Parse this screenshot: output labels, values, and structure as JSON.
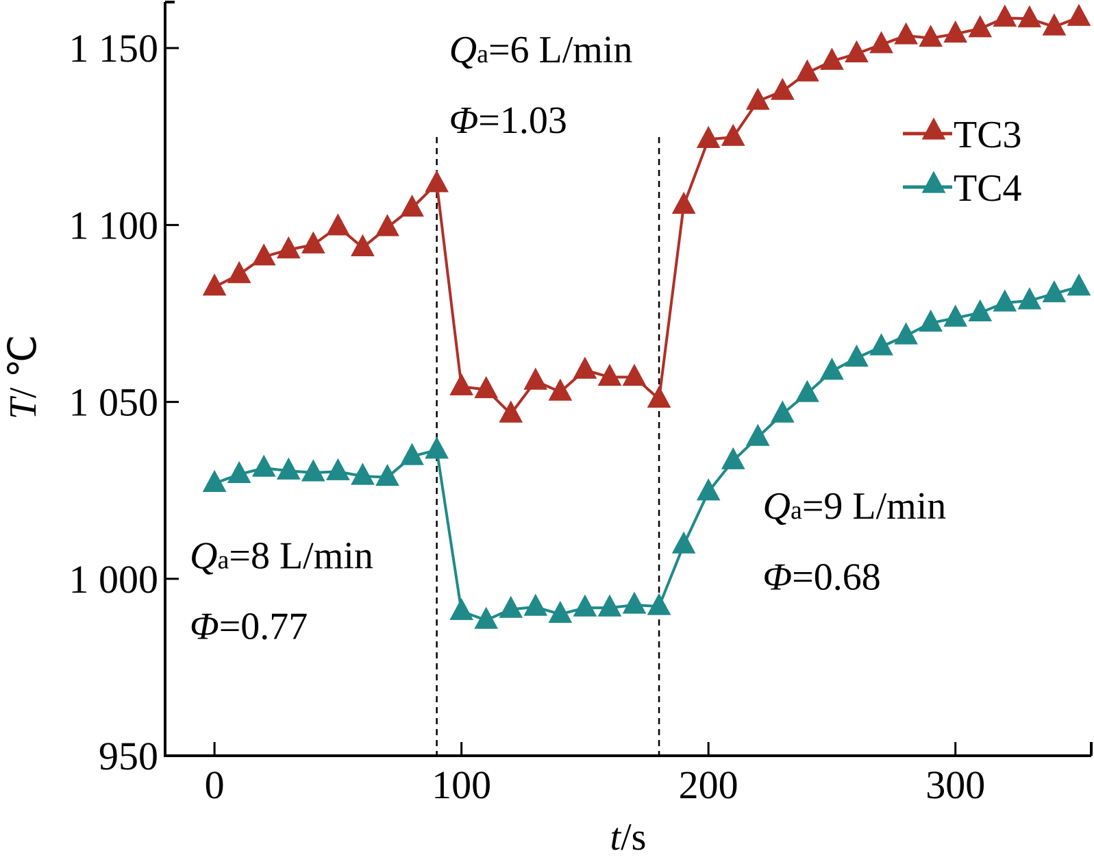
{
  "chart_data": {
    "type": "line",
    "title": "",
    "xlabel": "t/s",
    "xlabel_parts": {
      "var": "t",
      "unit": "/s"
    },
    "ylabel": "T / ℃",
    "ylabel_parts": {
      "var": "T",
      "unit": "/ ℃"
    },
    "xlim": [
      -20,
      355
    ],
    "ylim": [
      950,
      1163
    ],
    "xticks": [
      0,
      100,
      200,
      300
    ],
    "xtick_labels": [
      "0",
      "100",
      "200",
      "300"
    ],
    "yticks": [
      950,
      1000,
      1050,
      1100,
      1150
    ],
    "ytick_labels": [
      "950",
      "1 000",
      "1 050",
      "1 100",
      "1 150"
    ],
    "grid": false,
    "legend_position": "top-right",
    "x": [
      0,
      10,
      20,
      30,
      40,
      50,
      60,
      70,
      80,
      90,
      100,
      110,
      120,
      130,
      140,
      150,
      160,
      170,
      180,
      190,
      200,
      210,
      220,
      230,
      240,
      250,
      260,
      270,
      280,
      290,
      300,
      310,
      320,
      330,
      340,
      350
    ],
    "series": [
      {
        "name": "TC3",
        "color": "#b03026",
        "marker": "triangle",
        "values": [
          1082.5,
          1086,
          1091,
          1093,
          1094.4,
          1099.5,
          1093.6,
          1099.3,
          1104.8,
          1111.7,
          1054.3,
          1053.5,
          1046.6,
          1055.9,
          1052.8,
          1059,
          1057,
          1057,
          1050.8,
          1105.6,
          1124.2,
          1124.8,
          1135,
          1137.8,
          1143,
          1146.3,
          1148.4,
          1151,
          1153.5,
          1152.8,
          1154,
          1155.5,
          1158.5,
          1158.3,
          1156,
          1158.7
        ]
      },
      {
        "name": "TC4",
        "color": "#1f8a89",
        "marker": "triangle",
        "values": [
          1027,
          1029.5,
          1031.3,
          1030.5,
          1030,
          1030.3,
          1029,
          1028.7,
          1034.6,
          1036.4,
          990.8,
          988.3,
          991.4,
          992,
          990,
          991.8,
          991.8,
          992.6,
          992.2,
          1009.6,
          1024.6,
          1033.4,
          1040,
          1046.6,
          1052.4,
          1058.7,
          1062.4,
          1065.6,
          1068.7,
          1072.3,
          1073.7,
          1075.2,
          1078,
          1078.6,
          1080.6,
          1082.5
        ]
      }
    ],
    "vlines": [
      {
        "x": 90,
        "style": "dashed"
      },
      {
        "x": 180,
        "style": "dashed"
      }
    ],
    "annotations": [
      {
        "q_label": "Q",
        "q_sub": "a",
        "q_value": "=6 L/min",
        "phi_label": "Φ",
        "phi_value": "=1.03",
        "anchor_x": 95,
        "anchor_y_q": 1146,
        "anchor_y_phi": 1126
      },
      {
        "q_label": "Q",
        "q_sub": "a",
        "q_value": "=8 L/min",
        "phi_label": "Φ",
        "phi_value": "=0.77",
        "anchor_x": -10,
        "anchor_y_q": 1003,
        "anchor_y_phi": 983
      },
      {
        "q_label": "Q",
        "q_sub": "a",
        "q_value": "=9 L/min",
        "phi_label": "Φ",
        "phi_value": "=0.68",
        "anchor_x": 222,
        "anchor_y_q": 1017,
        "anchor_y_phi": 997
      }
    ]
  }
}
